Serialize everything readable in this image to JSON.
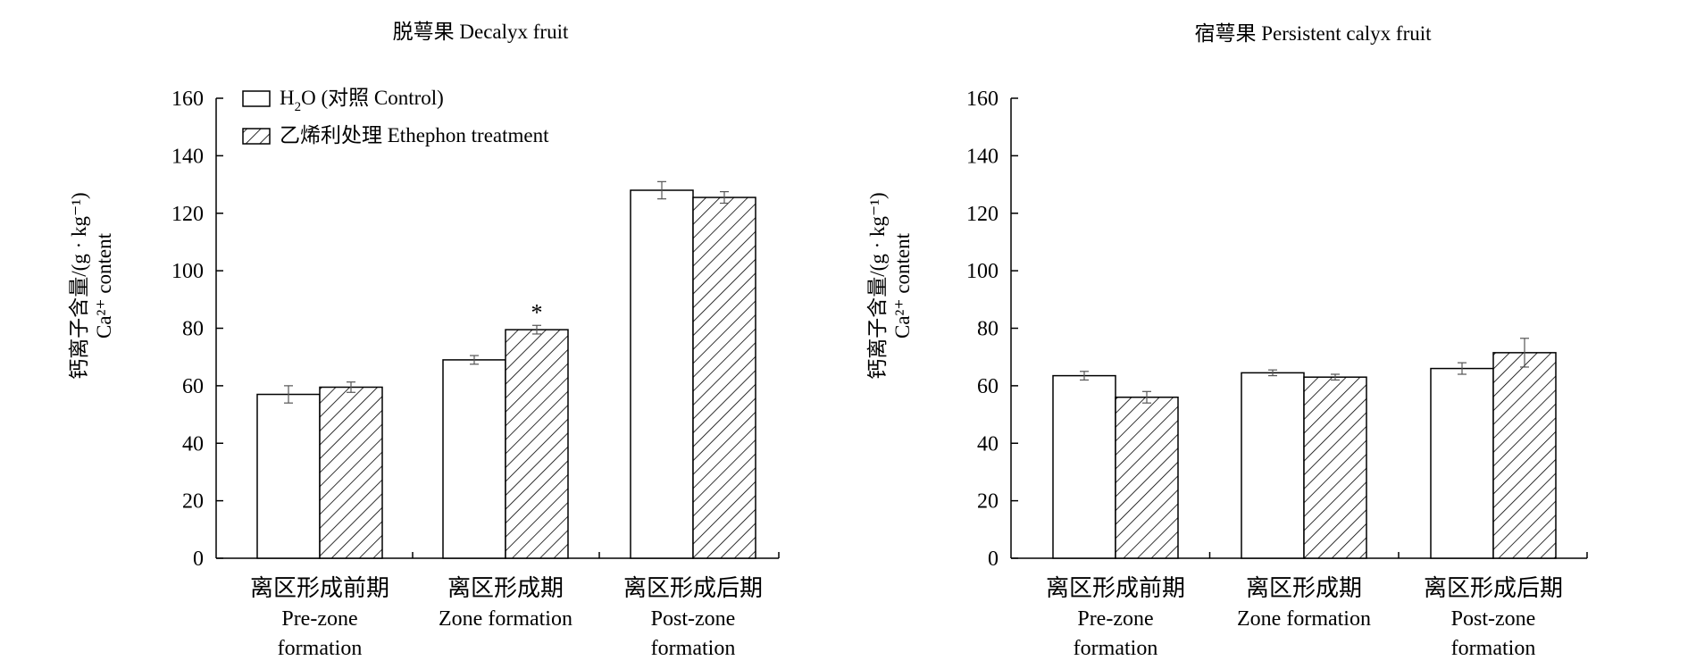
{
  "chart_data": [
    {
      "type": "bar",
      "title": "脱萼果 Decalyx fruit",
      "ylabel": "钙离子含量/(g · kg⁻¹)",
      "ylabel2": "Ca²⁺ content",
      "ylim": [
        0,
        160
      ],
      "yticks": [
        "0",
        "20",
        "40",
        "60",
        "80",
        "100",
        "120",
        "140",
        "160"
      ],
      "categories": [
        [
          "离区形成前期",
          "Pre-zone",
          "formation"
        ],
        [
          "离区形成期",
          "Zone formation"
        ],
        [
          "离区形成后期",
          "Post-zone",
          "formation"
        ]
      ],
      "legend": {
        "placement": "top-left",
        "entries": [
          [
            "H",
            "2",
            "O (对照 Control)"
          ],
          [
            "乙烯利处理 Ethephon treatment"
          ]
        ]
      },
      "series": [
        {
          "name": "H2O (对照 Control)",
          "pattern": "plain",
          "values": [
            57,
            69,
            128
          ],
          "errors": [
            3,
            1.5,
            3
          ]
        },
        {
          "name": "乙烯利处理 Ethephon treatment",
          "pattern": "hatch",
          "values": [
            59.5,
            79.5,
            125.5
          ],
          "errors": [
            1.8,
            1.5,
            2
          ]
        }
      ],
      "annotations": [
        {
          "series": 1,
          "category": 1,
          "text": "*"
        }
      ]
    },
    {
      "type": "bar",
      "title": "宿萼果 Persistent calyx fruit",
      "ylabel": "钙离子含量/(g · kg⁻¹)",
      "ylabel2": "Ca²⁺ content",
      "ylim": [
        0,
        160
      ],
      "yticks": [
        "0",
        "20",
        "40",
        "60",
        "80",
        "100",
        "120",
        "140",
        "160"
      ],
      "categories": [
        [
          "离区形成前期",
          "Pre-zone",
          "formation"
        ],
        [
          "离区形成期",
          "Zone formation"
        ],
        [
          "离区形成后期",
          "Post-zone",
          "formation"
        ]
      ],
      "series": [
        {
          "name": "H2O (对照 Control)",
          "pattern": "plain",
          "values": [
            63.5,
            64.5,
            66
          ],
          "errors": [
            1.5,
            1,
            2
          ]
        },
        {
          "name": "乙烯利处理 Ethephon treatment",
          "pattern": "hatch",
          "values": [
            56,
            63,
            71.5
          ],
          "errors": [
            2,
            1,
            5
          ]
        }
      ],
      "annotations": []
    }
  ]
}
